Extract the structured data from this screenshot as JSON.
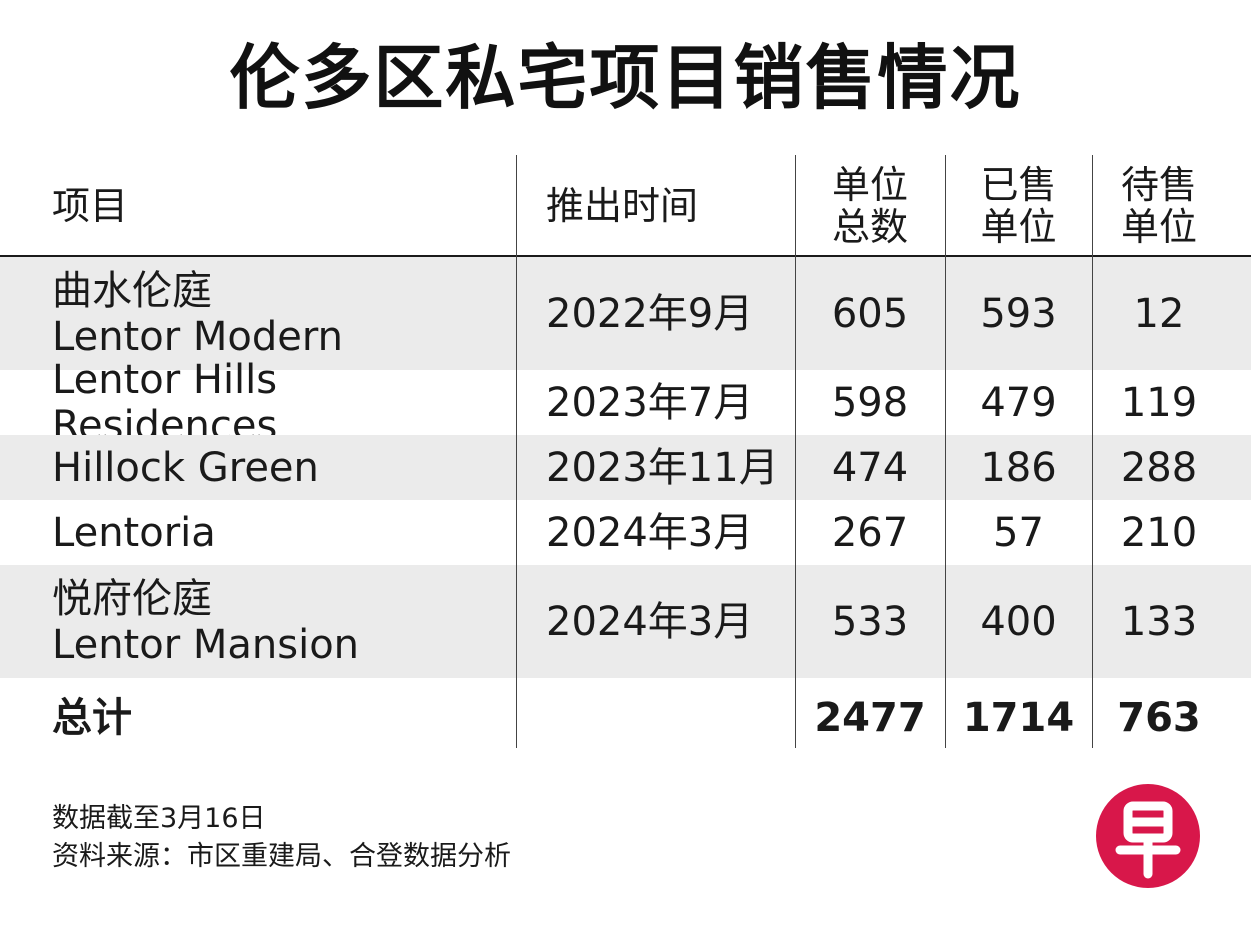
{
  "title": "伦多区私宅项目销售情况",
  "header": {
    "project": "项目",
    "launch": "推出时间",
    "total_units": [
      "单位",
      "总数"
    ],
    "sold_units": [
      "已售",
      "单位"
    ],
    "unsold_units": [
      "待售",
      "单位"
    ]
  },
  "rows": [
    {
      "name_cn": "曲水伦庭",
      "name_en": "Lentor Modern",
      "launch": "2022年9月",
      "total": "605",
      "sold": "593",
      "unsold": "12"
    },
    {
      "name_cn": "",
      "name_en": "Lentor Hills Residences",
      "launch": "2023年7月",
      "total": "598",
      "sold": "479",
      "unsold": "119"
    },
    {
      "name_cn": "",
      "name_en": "Hillock Green",
      "launch": "2023年11月",
      "total": "474",
      "sold": "186",
      "unsold": "288"
    },
    {
      "name_cn": "",
      "name_en": "Lentoria",
      "launch": "2024年3月",
      "total": "267",
      "sold": "57",
      "unsold": "210"
    },
    {
      "name_cn": "悦府伦庭",
      "name_en": "Lentor Mansion",
      "launch": "2024年3月",
      "total": "533",
      "sold": "400",
      "unsold": "133"
    }
  ],
  "totals": {
    "label": "总计",
    "total": "2477",
    "sold": "1714",
    "unsold": "763"
  },
  "notes": {
    "date": "数据截至3月16日",
    "source": "资料来源：市区重建局、合登数据分析"
  },
  "logo": {
    "glyph": "早",
    "color": "#d8174a"
  },
  "colors": {
    "row_shade": "#ebebeb",
    "text": "#1a1a1a"
  },
  "chart_data": {
    "type": "table",
    "title": "伦多区私宅项目销售情况",
    "columns": [
      "项目",
      "推出时间",
      "单位总数",
      "已售单位",
      "待售单位"
    ],
    "rows": [
      [
        "曲水伦庭 Lentor Modern",
        "2022年9月",
        605,
        593,
        12
      ],
      [
        "Lentor Hills Residences",
        "2023年7月",
        598,
        479,
        119
      ],
      [
        "Hillock Green",
        "2023年11月",
        474,
        186,
        288
      ],
      [
        "Lentoria",
        "2024年3月",
        267,
        57,
        210
      ],
      [
        "悦府伦庭 Lentor Mansion",
        "2024年3月",
        533,
        400,
        133
      ],
      [
        "总计",
        "",
        2477,
        1714,
        763
      ]
    ]
  }
}
